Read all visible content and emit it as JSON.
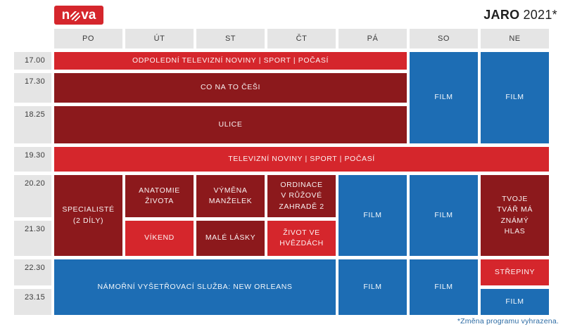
{
  "brand": {
    "n": "n",
    "va": "va",
    "logo_color": "#d5262c"
  },
  "title": {
    "season": "JARO",
    "year": "2021*"
  },
  "days": [
    "PO",
    "ÚT",
    "ST",
    "ČT",
    "PÁ",
    "SO",
    "NE"
  ],
  "times": [
    "17.00",
    "17.30",
    "18.25",
    "19.30",
    "20.20",
    "21.30",
    "22.30",
    "23.15"
  ],
  "programs": {
    "afternoon_news": "ODPOLEDNÍ TELEVIZNÍ NOVINY | SPORT | POČASÍ",
    "co_na_to_cesi": "CO NA TO ČEŠI",
    "ulice": "ULICE",
    "evening_news": "TELEVIZNÍ NOVINY | SPORT | POČASÍ",
    "specialiste": "SPECIALISTÉ\n(2 DÍLY)",
    "anatomie_zivota": "ANATOMIE\nŽIVOTA",
    "vymena_manzelek": "VÝMĚNA\nMANŽELEK",
    "ordinace": "ORDINACE\nV RŮŽOVÉ\nZAHRADĚ 2",
    "vikend": "VÍKEND",
    "male_lasky": "MALÉ LÁSKY",
    "zivot_ve_hvezdach": "ŽIVOT VE\nHVĚZDÁCH",
    "tvoje_tvar": "TVOJE\nTVÁŘ MÁ\nZNÁMÝ\nHLAS",
    "film": "FILM",
    "namorni": "NÁMOŘNÍ VYŠETŘOVACÍ SLUŽBA: NEW ORLEANS",
    "strepiny": "STŘEPINY"
  },
  "footnote": "*Změna programu vyhrazena.",
  "colors": {
    "bright_red": "#d5262c",
    "dark_red": "#8c191c",
    "blue": "#1d6db4",
    "cell_gray": "#e5e5e5",
    "label_text": "#3a3a3a",
    "footnote_blue": "#2b6aa3",
    "title_text": "#1f1f1f"
  }
}
